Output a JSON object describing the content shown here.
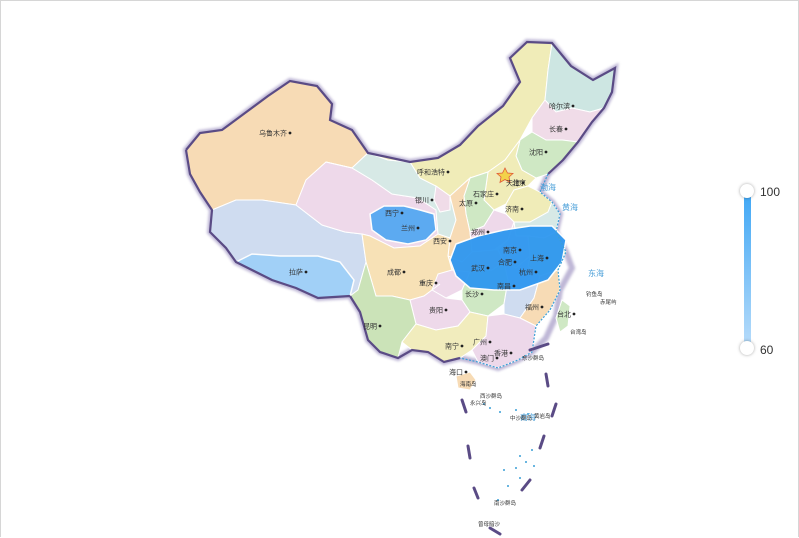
{
  "map": {
    "capital_label": "北京",
    "cities": [
      {
        "name": "乌鲁木齐"
      },
      {
        "name": "哈尔滨"
      },
      {
        "name": "长春"
      },
      {
        "name": "沈阳"
      },
      {
        "name": "呼和浩特"
      },
      {
        "name": "天津"
      },
      {
        "name": "石家庄"
      },
      {
        "name": "银川"
      },
      {
        "name": "太原"
      },
      {
        "name": "济南"
      },
      {
        "name": "西宁"
      },
      {
        "name": "兰州"
      },
      {
        "name": "郑州"
      },
      {
        "name": "西安"
      },
      {
        "name": "南京"
      },
      {
        "name": "合肥"
      },
      {
        "name": "上海"
      },
      {
        "name": "拉萨"
      },
      {
        "name": "成都"
      },
      {
        "name": "武汉"
      },
      {
        "name": "杭州"
      },
      {
        "name": "重庆"
      },
      {
        "name": "长沙"
      },
      {
        "name": "南昌"
      },
      {
        "name": "贵阳"
      },
      {
        "name": "福州"
      },
      {
        "name": "台北"
      },
      {
        "name": "昆明"
      },
      {
        "name": "南宁"
      },
      {
        "name": "广州"
      },
      {
        "name": "香港"
      },
      {
        "name": "澳门"
      },
      {
        "name": "海口"
      }
    ],
    "seas": [
      "渤海",
      "黄海",
      "东海",
      "南海"
    ],
    "islands": [
      "钓鱼岛",
      "赤尾屿",
      "台湾岛",
      "东沙群岛",
      "海南岛",
      "西沙群岛",
      "中沙群岛",
      "黄岩岛",
      "永兴岛",
      "南沙群岛",
      "曾母暗沙"
    ],
    "colors": {
      "xinjiang": "#f7dbb5",
      "tibet": "#cfdcf0",
      "qinghai": "#eed9ea",
      "gansu": "#d7e9e6",
      "inner_mongolia": "#f0ecb8",
      "heilongjiang": "#cde6e2",
      "jilin": "#f0dce8",
      "liaoning": "#cfe8c4",
      "sichuan": "#f7e1b6",
      "yunnan": "#cbe3b8",
      "guangxi": "#f1ecbd",
      "guangdong": "#edd8ea",
      "border": "#6c5a95",
      "highlight_strong": "#2e97f0",
      "highlight_light": "#9fd0f8"
    }
  },
  "visual_map": {
    "max_label": "100",
    "min_label": "60",
    "max": 100,
    "min": 60,
    "color_high": "#3fa7f5",
    "color_low": "#b8dcfa"
  }
}
